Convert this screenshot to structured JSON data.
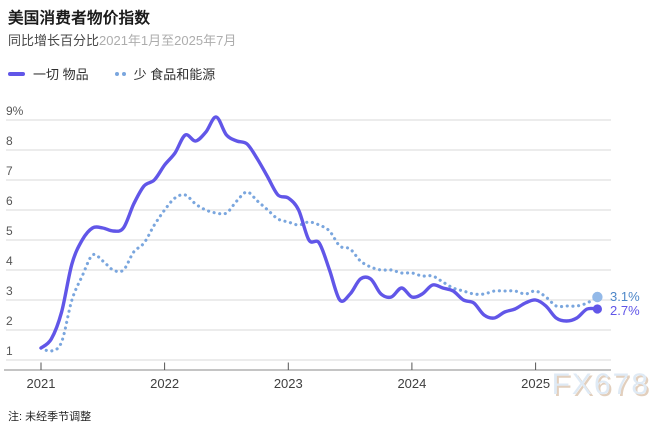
{
  "header": {
    "title": "美国消费者物价指数",
    "subtitle_label": "同比增长百分比",
    "subtitle_range": "2021年1月至2025年7月"
  },
  "footer": {
    "note": "注: 未经季节调整",
    "watermark": "FX678"
  },
  "colors": {
    "all_items_line": "#6156e8",
    "core_line": "#7aa6de",
    "core_end_dot": "#93b9e8",
    "end_label_core": "#4c86c8",
    "end_label_all": "#6156e8",
    "grid": "#dadada",
    "axis": "#8a8a8a"
  },
  "chart_data": {
    "type": "line",
    "title": "美国消费者物价指数",
    "subtitle": "同比增长百分比2021年1月至2025年7月",
    "xlabel": "",
    "ylabel": "",
    "x_unit": "month",
    "x_range": [
      "2021-01",
      "2025-07"
    ],
    "x_tick_labels": [
      "2021",
      "2022",
      "2023",
      "2024",
      "2025"
    ],
    "y_ticks": [
      {
        "value": 9,
        "label": "9%"
      },
      {
        "value": 8,
        "label": "8"
      },
      {
        "value": 7,
        "label": "7"
      },
      {
        "value": 6,
        "label": "6"
      },
      {
        "value": 5,
        "label": "5"
      },
      {
        "value": 4,
        "label": "4"
      },
      {
        "value": 3,
        "label": "3"
      },
      {
        "value": 2,
        "label": "2"
      },
      {
        "value": 1,
        "label": "1"
      }
    ],
    "ylim": [
      1,
      9
    ],
    "grid": true,
    "legend_position": "top-left",
    "series": [
      {
        "name": "一切 物品",
        "style": "solid",
        "color": "#6156e8",
        "end_label": "2.7%",
        "values": [
          1.4,
          1.7,
          2.6,
          4.2,
          5.0,
          5.4,
          5.4,
          5.3,
          5.4,
          6.2,
          6.8,
          7.0,
          7.5,
          7.9,
          8.5,
          8.3,
          8.6,
          9.1,
          8.5,
          8.3,
          8.2,
          7.7,
          7.1,
          6.5,
          6.4,
          6.0,
          5.0,
          4.9,
          4.0,
          3.0,
          3.2,
          3.7,
          3.7,
          3.2,
          3.1,
          3.4,
          3.1,
          3.2,
          3.5,
          3.4,
          3.3,
          3.0,
          2.9,
          2.5,
          2.4,
          2.6,
          2.7,
          2.9,
          3.0,
          2.8,
          2.4,
          2.3,
          2.4,
          2.7,
          2.7
        ]
      },
      {
        "name": "少 食品和能源",
        "style": "dotted",
        "color": "#7aa6de",
        "end_label": "3.1%",
        "values": [
          1.4,
          1.3,
          1.6,
          3.0,
          3.8,
          4.5,
          4.3,
          4.0,
          4.0,
          4.6,
          4.9,
          5.5,
          6.0,
          6.4,
          6.5,
          6.2,
          6.0,
          5.9,
          5.9,
          6.3,
          6.6,
          6.3,
          6.0,
          5.7,
          5.6,
          5.5,
          5.6,
          5.5,
          5.3,
          4.8,
          4.7,
          4.3,
          4.1,
          4.0,
          4.0,
          3.9,
          3.9,
          3.8,
          3.8,
          3.6,
          3.4,
          3.3,
          3.2,
          3.2,
          3.3,
          3.3,
          3.3,
          3.2,
          3.3,
          3.1,
          2.8,
          2.8,
          2.8,
          2.9,
          3.1
        ]
      }
    ]
  }
}
